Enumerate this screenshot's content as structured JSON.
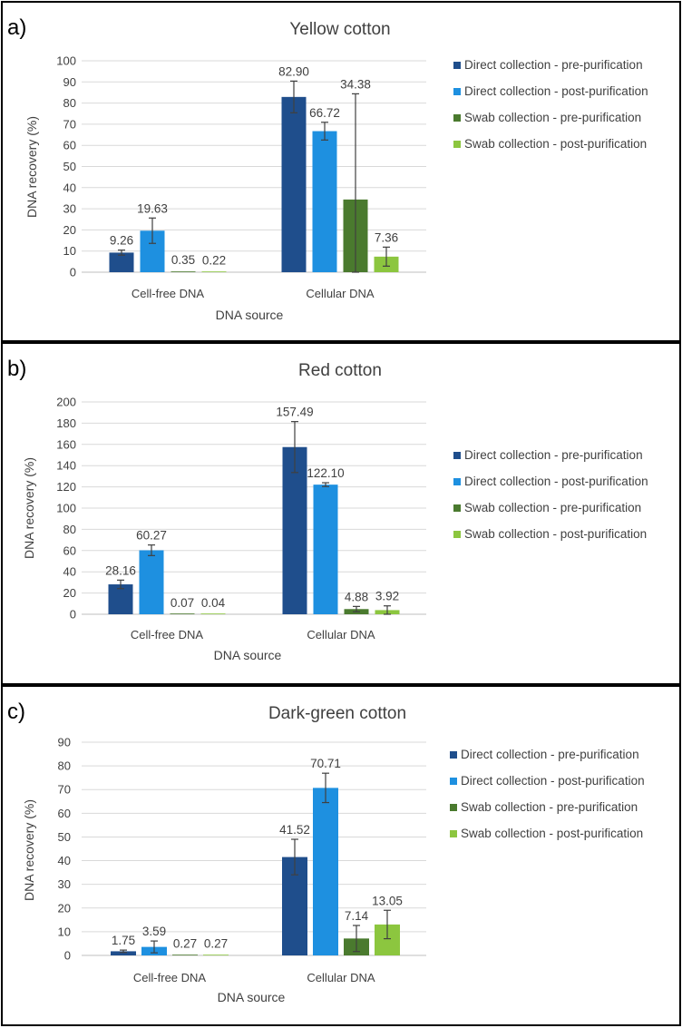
{
  "colors": {
    "direct_pre": "#1f4e8c",
    "direct_post": "#1e90e0",
    "swab_pre": "#4a7a2e",
    "swab_post": "#8cc63f"
  },
  "chart_data": [
    {
      "type": "bar",
      "panel_label": "a)",
      "title": "Yellow cotton",
      "xlabel": "DNA source",
      "ylabel": "DNA recovery (%)",
      "ylim": [
        0,
        100
      ],
      "yticks": [
        0,
        10,
        20,
        30,
        40,
        50,
        60,
        70,
        80,
        90,
        100
      ],
      "categories": [
        "Cell-free DNA",
        "Cellular DNA"
      ],
      "legend_position": "right",
      "series": [
        {
          "name": "Direct collection - pre-purification",
          "color": "#1f4e8c",
          "values": [
            9.26,
            82.9
          ],
          "labels": [
            "9.26",
            "82.90"
          ],
          "errors": [
            1.2,
            7.5
          ]
        },
        {
          "name": "Direct collection - post-purification",
          "color": "#1e90e0",
          "values": [
            19.63,
            66.72
          ],
          "labels": [
            "19.63",
            "66.72"
          ],
          "errors": [
            6.0,
            4.2
          ]
        },
        {
          "name": "Swab collection - pre-purification",
          "color": "#4a7a2e",
          "values": [
            0.35,
            34.38
          ],
          "labels": [
            "0.35",
            "34.38"
          ],
          "errors": [
            0.0,
            50.0
          ]
        },
        {
          "name": "Swab collection - post-purification",
          "color": "#8cc63f",
          "values": [
            0.22,
            7.36
          ],
          "labels": [
            "0.22",
            "7.36"
          ],
          "errors": [
            0.0,
            4.5
          ]
        }
      ]
    },
    {
      "type": "bar",
      "panel_label": "b)",
      "title": "Red cotton",
      "xlabel": "DNA source",
      "ylabel": "DNA recovery (%)",
      "ylim": [
        0,
        200
      ],
      "yticks": [
        0,
        20,
        40,
        60,
        80,
        100,
        120,
        140,
        160,
        180,
        200
      ],
      "categories": [
        "Cell-free DNA",
        "Cellular DNA"
      ],
      "legend_position": "right",
      "series": [
        {
          "name": "Direct collection - pre-purification",
          "color": "#1f4e8c",
          "values": [
            28.16,
            157.49
          ],
          "labels": [
            "28.16",
            "157.49"
          ],
          "errors": [
            4.0,
            24.0
          ]
        },
        {
          "name": "Direct collection - post-purification",
          "color": "#1e90e0",
          "values": [
            60.27,
            122.1
          ],
          "labels": [
            "60.27",
            "122.10"
          ],
          "errors": [
            5.0,
            1.8
          ]
        },
        {
          "name": "Swab collection - pre-purification",
          "color": "#4a7a2e",
          "values": [
            0.07,
            4.88
          ],
          "labels": [
            "0.07",
            "4.88"
          ],
          "errors": [
            0.0,
            2.5
          ]
        },
        {
          "name": "Swab collection - post-purification",
          "color": "#8cc63f",
          "values": [
            0.04,
            3.92
          ],
          "labels": [
            "0.04",
            "3.92"
          ],
          "errors": [
            0.0,
            4.0
          ]
        }
      ]
    },
    {
      "type": "bar",
      "panel_label": "c)",
      "title": "Dark-green cotton",
      "xlabel": "DNA source",
      "ylabel": "DNA recovery (%)",
      "ylim": [
        0,
        90
      ],
      "yticks": [
        0,
        10,
        20,
        30,
        40,
        50,
        60,
        70,
        80,
        90
      ],
      "categories": [
        "Cell-free DNA",
        "Cellular DNA"
      ],
      "legend_position": "right",
      "series": [
        {
          "name": "Direct collection - pre-purification",
          "color": "#1f4e8c",
          "values": [
            1.75,
            41.52
          ],
          "labels": [
            "1.75",
            "41.52"
          ],
          "errors": [
            0.5,
            7.5
          ]
        },
        {
          "name": "Direct collection - post-purification",
          "color": "#1e90e0",
          "values": [
            3.59,
            70.71
          ],
          "labels": [
            "3.59",
            "70.71"
          ],
          "errors": [
            2.5,
            6.2
          ]
        },
        {
          "name": "Swab collection - pre-purification",
          "color": "#4a7a2e",
          "values": [
            0.27,
            7.14
          ],
          "labels": [
            "0.27",
            "7.14"
          ],
          "errors": [
            0.0,
            5.5
          ]
        },
        {
          "name": "Swab collection - post-purification",
          "color": "#8cc63f",
          "values": [
            0.27,
            13.05
          ],
          "labels": [
            "0.27",
            "13.05"
          ],
          "errors": [
            0.0,
            6.0
          ]
        }
      ]
    }
  ]
}
